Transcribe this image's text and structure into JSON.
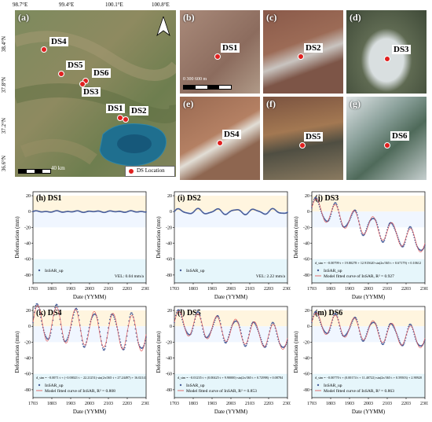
{
  "map": {
    "lon_ticks": [
      "98.7°E",
      "99.4°E",
      "100.1°E",
      "100.8°E"
    ],
    "lat_ticks": [
      "38.4°N",
      "37.8°N",
      "37.2°N",
      "36.6°N"
    ],
    "scale_label": "40 km",
    "legend_label": "DS Location",
    "north_label": "N",
    "sites": [
      "DS4",
      "DS5",
      "DS6",
      "DS3",
      "DS1",
      "DS2"
    ]
  },
  "photos": [
    {
      "letter": "(b)",
      "site": "DS1",
      "scale": "0   300   600 m"
    },
    {
      "letter": "(c)",
      "site": "DS2"
    },
    {
      "letter": "(d)",
      "site": "DS3"
    },
    {
      "letter": "(e)",
      "site": "DS4"
    },
    {
      "letter": "(f)",
      "site": "DS5"
    },
    {
      "letter": "(g)",
      "site": "DS6"
    }
  ],
  "panel_a_letter": "(a)",
  "chart_data": [
    {
      "type": "scatter",
      "title": "(h) DS1",
      "xlabel": "Date (YYMM)",
      "ylabel": "Deformation (mm)",
      "xticks": [
        "1703",
        "1803",
        "1903",
        "2003",
        "2103",
        "2203",
        "2303"
      ],
      "yticks": [
        20,
        0,
        -20,
        -40,
        -60,
        -80
      ],
      "ylim": [
        -90,
        25
      ],
      "legend": [
        "InSAR_up"
      ],
      "annotation": "VEL: 0.04 mm/a",
      "series": [
        {
          "name": "InSAR_up",
          "amplitude": 0.5,
          "trend": 0.0
        }
      ]
    },
    {
      "type": "scatter",
      "title": "(i) DS2",
      "xlabel": "Date (YYMM)",
      "ylabel": "Deformation (mm)",
      "xticks": [
        "1703",
        "1803",
        "1903",
        "2003",
        "2103",
        "2203",
        "2303"
      ],
      "yticks": [
        20,
        0,
        -20,
        -40,
        -60,
        -80
      ],
      "ylim": [
        -90,
        25
      ],
      "legend": [
        "InSAR_up"
      ],
      "annotation": "VEL: 2.22 mm/a",
      "series": [
        {
          "name": "InSAR_up",
          "amplitude": 3,
          "trend": 0.0
        }
      ]
    },
    {
      "type": "scatter",
      "title": "(j) DS3",
      "xlabel": "Date (YYMM)",
      "ylabel": "Deformation (mm)",
      "xticks": [
        "1703",
        "1803",
        "1903",
        "2003",
        "2103",
        "2203",
        "2303"
      ],
      "yticks": [
        20,
        0,
        -20,
        -40,
        -60,
        -80
      ],
      "ylim": [
        -90,
        25
      ],
      "legend": [
        "InSAR_up",
        "Model fitted curve of InSAR, R² = 0.927"
      ],
      "equation": "d_sim = −0.00799·t + 19.80278 + 12.915620·sin(2π/365·t + 0.67179) + 0.10612",
      "series": [
        {
          "name": "InSAR_up",
          "amplitude": 13,
          "trend": -45.0
        }
      ]
    },
    {
      "type": "scatter",
      "title": "(k) DS4",
      "xlabel": "Date (YYMM)",
      "ylabel": "Deformation (mm)",
      "xticks": [
        "1703",
        "1803",
        "1903",
        "2003",
        "2103",
        "2203",
        "2303"
      ],
      "yticks": [
        20,
        0,
        -20,
        -40,
        -60,
        -80
      ],
      "ylim": [
        -90,
        25
      ],
      "legend": [
        "InSAR_up",
        "Model fitted curve of InSAR, R² = 0.808"
      ],
      "equation": "d_sim = −0.0071·t + (−0.00021·t − 22.21251)·sin(2π/365·t + 27.24497) + 16.02141",
      "series": [
        {
          "name": "InSAR_up",
          "amplitude": 22,
          "trend": -15.0
        }
      ]
    },
    {
      "type": "scatter",
      "title": "(l) DS5",
      "xlabel": "Date (YYMM)",
      "ylabel": "Deformation (mm)",
      "xticks": [
        "1703",
        "1803",
        "1903",
        "2003",
        "2103",
        "2203",
        "2303"
      ],
      "yticks": [
        20,
        0,
        -20,
        -40,
        -60,
        -80
      ],
      "ylim": [
        -90,
        25
      ],
      "legend": [
        "InSAR_up",
        "Model fitted curve of InSAR, R² = 0.853"
      ],
      "equation": "d_sim = −0.01235·t + (0.00425·t + 9.90000)·sin(2π/365·t + 0.72998) + 0.08784",
      "series": [
        {
          "name": "InSAR_up",
          "amplitude": 15,
          "trend": -20.0
        }
      ]
    },
    {
      "type": "scatter",
      "title": "(m) DS6",
      "xlabel": "Date (YYMM)",
      "ylabel": "Deformation (mm)",
      "xticks": [
        "1703",
        "1803",
        "1903",
        "2003",
        "2103",
        "2203",
        "2303"
      ],
      "yticks": [
        20,
        0,
        -20,
        -40,
        -60,
        -80
      ],
      "ylim": [
        -90,
        25
      ],
      "legend": [
        "InSAR_up",
        "Model fitted curve of InSAR, R² = 0.863"
      ],
      "equation": "d_sim = −0.00770·t + (0.00174·t + 11.40722)·sin(2π/365·t + 0.59503) + 2.90920",
      "series": [
        {
          "name": "InSAR_up",
          "amplitude": 13,
          "trend": -20.0
        }
      ]
    }
  ]
}
